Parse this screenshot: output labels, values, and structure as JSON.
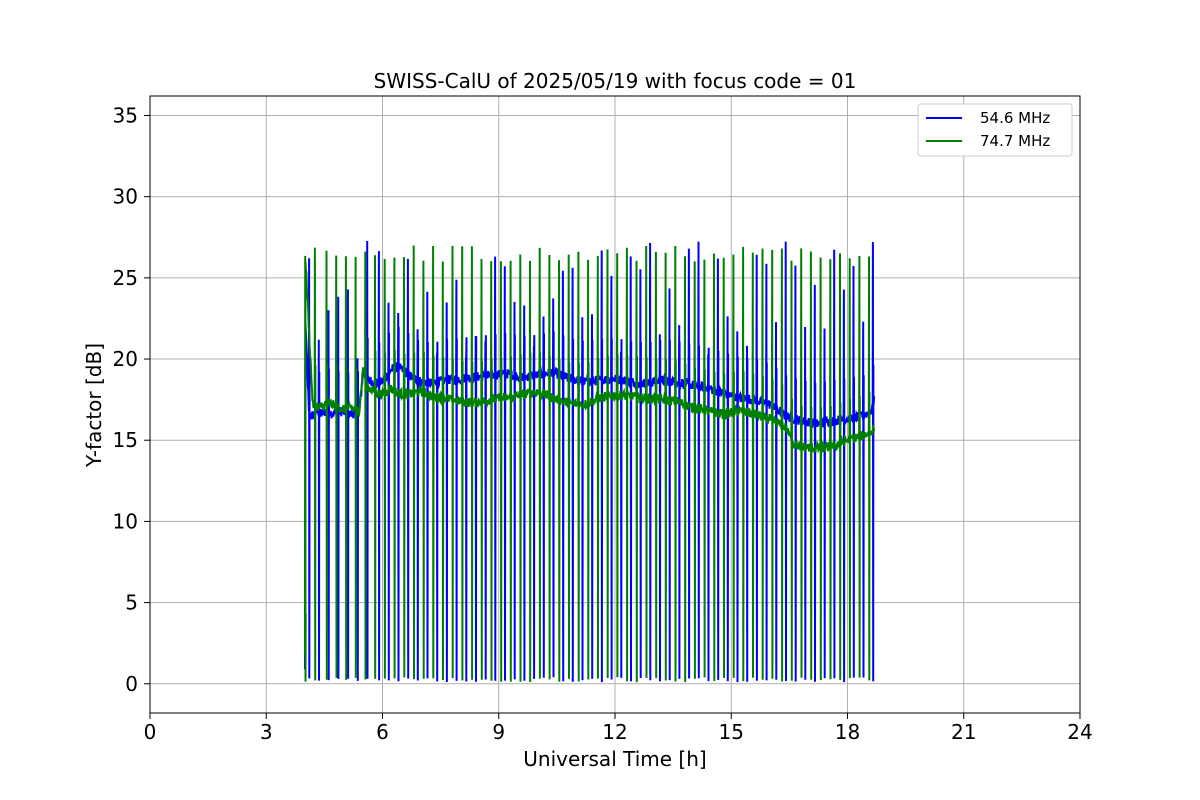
{
  "chart_data": {
    "type": "line",
    "title": "SWISS-CalU of 2025/05/19 with focus code = 01",
    "xlabel": "Universal Time [h]",
    "ylabel": "Y-factor [dB]",
    "xlim": [
      0,
      24
    ],
    "ylim": [
      -1.8,
      36.2
    ],
    "xticks": [
      0,
      3,
      6,
      9,
      12,
      15,
      18,
      21,
      24
    ],
    "yticks": [
      0,
      5,
      10,
      15,
      20,
      25,
      30,
      35
    ],
    "grid": true,
    "legend_position": "top-right",
    "series": [
      {
        "name": "54.6 MHz",
        "color": "#0000ff",
        "x": [
          4.0,
          4.0,
          4.1,
          4.1,
          4.2,
          4.3,
          4.4,
          4.5,
          4.6,
          4.7,
          4.8,
          4.9,
          5.0,
          5.2,
          5.4,
          5.5,
          5.6,
          5.8,
          6.0,
          6.2,
          6.4,
          6.6,
          6.8,
          7.0,
          7.3,
          7.6,
          8.0,
          8.4,
          8.8,
          9.2,
          9.6,
          10.0,
          10.4,
          10.8,
          11.2,
          11.6,
          12.0,
          12.4,
          12.8,
          13.2,
          13.6,
          14.0,
          14.4,
          14.8,
          15.2,
          15.6,
          16.0,
          16.4,
          16.8,
          17.2,
          17.6,
          18.0,
          18.4,
          18.6,
          18.7
        ],
        "y": [
          0.8,
          23.0,
          16.8,
          16.6,
          16.5,
          16.8,
          16.6,
          16.7,
          16.9,
          16.6,
          16.7,
          16.8,
          16.7,
          16.6,
          16.8,
          19.2,
          18.8,
          18.5,
          18.6,
          19.3,
          19.5,
          19.2,
          18.8,
          18.6,
          18.5,
          18.7,
          18.8,
          18.9,
          19.0,
          19.1,
          18.9,
          19.0,
          19.2,
          18.8,
          18.6,
          18.7,
          18.8,
          18.6,
          18.5,
          18.7,
          18.6,
          18.4,
          18.2,
          17.9,
          17.6,
          17.5,
          17.2,
          16.5,
          16.2,
          16.0,
          16.2,
          16.3,
          16.5,
          16.8,
          17.5
        ]
      },
      {
        "name": "74.7 MHz",
        "color": "#008000",
        "x": [
          4.0,
          4.0,
          4.2,
          4.4,
          4.6,
          4.8,
          5.0,
          5.2,
          5.4,
          5.5,
          5.6,
          5.8,
          6.0,
          6.2,
          6.4,
          6.6,
          6.8,
          7.0,
          7.3,
          7.6,
          8.0,
          8.4,
          8.8,
          9.2,
          9.6,
          10.0,
          10.4,
          10.8,
          11.2,
          11.6,
          12.0,
          12.4,
          12.8,
          13.2,
          13.6,
          14.0,
          14.4,
          14.8,
          15.2,
          15.6,
          16.0,
          16.4,
          16.6,
          16.8,
          17.2,
          17.6,
          18.0,
          18.4,
          18.6,
          18.7
        ],
        "y": [
          1.8,
          26.8,
          17.2,
          17.0,
          17.3,
          17.1,
          16.9,
          17.0,
          16.8,
          19.5,
          18.3,
          18.0,
          17.8,
          18.2,
          17.9,
          17.8,
          17.9,
          18.0,
          17.7,
          17.6,
          17.4,
          17.3,
          17.5,
          17.6,
          17.8,
          18.0,
          17.6,
          17.3,
          17.2,
          17.6,
          17.8,
          17.7,
          17.6,
          17.5,
          17.4,
          17.0,
          16.8,
          16.6,
          16.8,
          16.6,
          16.3,
          15.8,
          14.8,
          14.6,
          14.5,
          14.6,
          15.0,
          15.3,
          15.5,
          15.8
        ]
      }
    ],
    "spike_times_green": [
      4.0,
      4.25,
      4.55,
      4.8,
      5.05,
      5.3,
      5.55,
      5.8,
      6.05,
      6.3,
      6.55,
      6.8,
      7.05,
      7.3,
      7.55,
      7.8,
      8.05,
      8.3,
      8.55,
      8.8,
      9.05,
      9.3,
      9.55,
      9.8,
      10.05,
      10.3,
      10.55,
      10.8,
      11.05,
      11.3,
      11.55,
      11.8,
      12.05,
      12.3,
      12.55,
      12.8,
      13.05,
      13.3,
      13.55,
      13.8,
      14.05,
      14.3,
      14.55,
      14.8,
      15.05,
      15.3,
      15.55,
      15.8,
      16.05,
      16.3,
      16.55,
      16.8,
      17.05,
      17.3,
      17.55,
      17.8,
      18.05,
      18.3,
      18.55,
      18.75
    ],
    "spike_times_blue": [
      4.1,
      4.35,
      4.6,
      4.85,
      5.1,
      5.35,
      5.6,
      5.9,
      6.15,
      6.4,
      6.65,
      6.9,
      7.15,
      7.4,
      7.65,
      7.9,
      8.15,
      8.4,
      8.65,
      8.9,
      9.15,
      9.4,
      9.65,
      9.9,
      10.15,
      10.4,
      10.65,
      10.9,
      11.15,
      11.4,
      11.65,
      11.9,
      12.15,
      12.4,
      12.65,
      12.9,
      13.15,
      13.4,
      13.65,
      13.9,
      14.15,
      14.4,
      14.65,
      14.9,
      15.15,
      15.4,
      15.65,
      15.9,
      16.15,
      16.4,
      16.65,
      16.9,
      17.15,
      17.4,
      17.65,
      17.9,
      18.15,
      18.4,
      18.65
    ]
  }
}
